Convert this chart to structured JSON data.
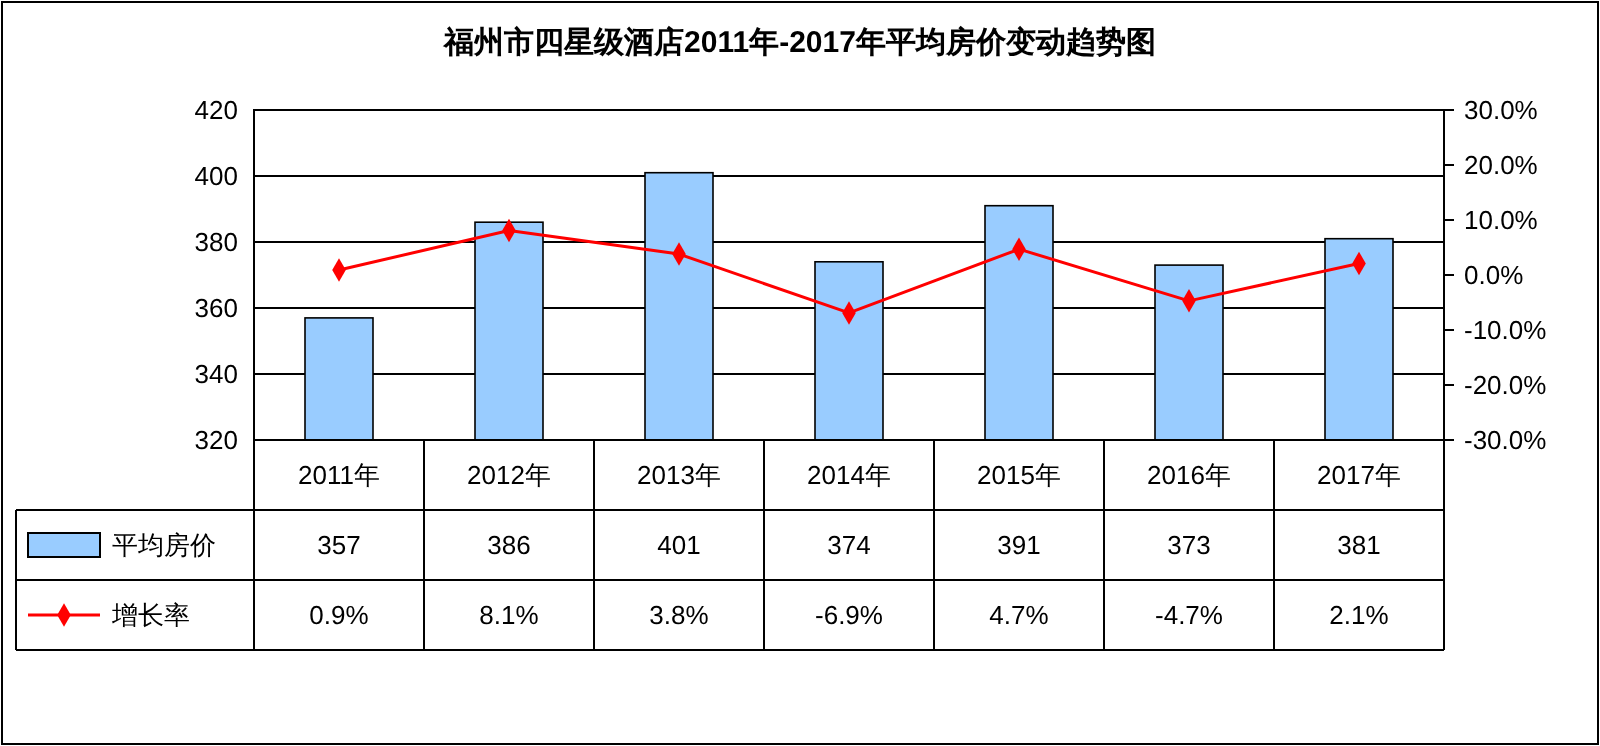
{
  "chart_data": {
    "type": "bar",
    "title": "福州市四星级酒店2011年-2017年平均房价变动趋势图",
    "categories": [
      "2011年",
      "2012年",
      "2013年",
      "2014年",
      "2015年",
      "2016年",
      "2017年"
    ],
    "series": [
      {
        "name": "平均房价",
        "color": "#99ccff",
        "values": [
          357,
          386,
          401,
          374,
          391,
          373,
          381
        ],
        "value_labels": [
          "357",
          "386",
          "401",
          "374",
          "391",
          "373",
          "381"
        ]
      },
      {
        "name": "增长率",
        "type": "line",
        "axis": "y2",
        "color": "#ff0000",
        "marker": "diamond",
        "values": [
          0.9,
          8.1,
          3.8,
          -6.9,
          4.7,
          -4.7,
          2.1
        ],
        "value_labels": [
          "0.9%",
          "8.1%",
          "3.8%",
          "-6.9%",
          "4.7%",
          "-4.7%",
          "2.1%"
        ]
      }
    ],
    "ylim": [
      320,
      420
    ],
    "yticks": [
      320,
      340,
      360,
      380,
      400,
      420
    ],
    "y2lim": [
      -30,
      30
    ],
    "y2ticks": [
      {
        "value": -30,
        "label": "-30.0%"
      },
      {
        "value": -20,
        "label": "-20.0%"
      },
      {
        "value": -10,
        "label": "-10.0%"
      },
      {
        "value": 0,
        "label": "0.0%"
      },
      {
        "value": 10,
        "label": "10.0%"
      },
      {
        "value": 20,
        "label": "20.0%"
      },
      {
        "value": 30,
        "label": "30.0%"
      }
    ],
    "grid": "y",
    "legend": "bottom left"
  }
}
